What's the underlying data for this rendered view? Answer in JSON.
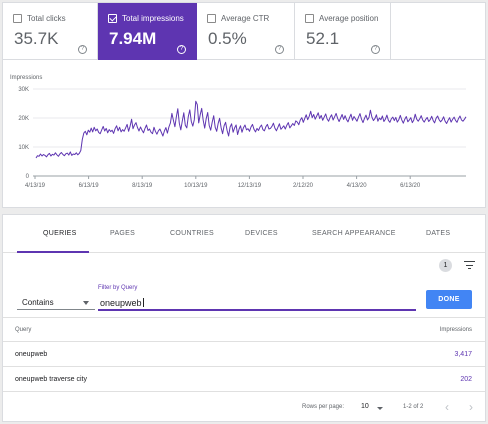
{
  "metrics": [
    {
      "label": "Total clicks",
      "value": "35.7K",
      "checked": false
    },
    {
      "label": "Total impressions",
      "value": "7.94M",
      "checked": true
    },
    {
      "label": "Average CTR",
      "value": "0.5%",
      "checked": false
    },
    {
      "label": "Average position",
      "value": "52.1",
      "checked": false
    }
  ],
  "help_glyph": "?",
  "chart_data": {
    "type": "line",
    "ylabel": "Impressions",
    "y_ticks": [
      "0",
      "10K",
      "20K",
      "30K"
    ],
    "ylim": [
      0,
      30000
    ],
    "x_ticks": [
      "4/13/19",
      "6/13/19",
      "8/13/19",
      "10/13/19",
      "12/13/19",
      "2/12/20",
      "4/13/20",
      "6/13/20"
    ],
    "grid": true,
    "series": [
      {
        "color": "#5e35b1",
        "values": [
          6200,
          7000,
          6800,
          7600,
          6900,
          7400,
          7100,
          6600,
          7300,
          7800,
          6900,
          7500,
          7200,
          8000,
          7300,
          6800,
          7600,
          8100,
          7400,
          7000,
          7700,
          7900,
          7200,
          8300,
          7100,
          7600,
          7400,
          8000,
          7300,
          7800,
          8800,
          12600,
          14800,
          15400,
          14200,
          15800,
          15100,
          16500,
          15200,
          16800,
          15600,
          16200,
          15000,
          14600,
          15900,
          17100,
          15500,
          16400,
          14900,
          16000,
          15300,
          15800,
          14700,
          16300,
          17300,
          15600,
          16800,
          15200,
          16000,
          15400,
          16600,
          17800,
          15400,
          17200,
          19600,
          16300,
          17600,
          18400,
          16700,
          15500,
          16900,
          15800,
          14900,
          16400,
          17600,
          15700,
          16200,
          15100,
          14600,
          16800,
          15400,
          14400,
          15600,
          16200,
          15000,
          13800,
          15500,
          16700,
          14800,
          16900,
          18300,
          21600,
          19200,
          17000,
          20300,
          23200,
          18200,
          15900,
          19000,
          21800,
          17500,
          16600,
          20500,
          22800,
          18800,
          17200,
          19400,
          25800,
          24600,
          18300,
          21100,
          23300,
          19200,
          16500,
          19800,
          21900,
          17400,
          15800,
          18600,
          20800,
          16800,
          15400,
          18200,
          19900,
          16700,
          14600,
          17300,
          18500,
          15700,
          13800,
          16900,
          18000,
          15100,
          16600,
          17600,
          14300,
          16200,
          17300,
          15100,
          16700,
          17600,
          15900,
          16300,
          15400,
          16900,
          17800,
          16100,
          15200,
          16400,
          15700,
          16900,
          17600,
          16000,
          15600,
          17000,
          17800,
          16200,
          16400,
          17100,
          18200,
          16500,
          15600,
          16800,
          18000,
          16100,
          16700,
          17300,
          16200,
          17500,
          18400,
          16600,
          17300,
          18100,
          17400,
          19000,
          18600,
          17700,
          19300,
          20100,
          18500,
          19900,
          21100,
          19400,
          20600,
          22300,
          20100,
          21200,
          19600,
          20700,
          21800,
          19800,
          20900,
          19200,
          20300,
          21400,
          19700,
          18900,
          20200,
          21100,
          19300,
          20400,
          21600,
          19900,
          18800,
          20000,
          21200,
          19500,
          20800,
          19400,
          18700,
          20100,
          21300,
          19200,
          20500,
          19700,
          18900,
          20300,
          21500,
          19600,
          18400,
          19900,
          21000,
          19300,
          20200,
          22700,
          20300,
          19100,
          19800,
          21100,
          18900,
          20000,
          19400,
          20700,
          18800,
          19600,
          21000,
          19200,
          18500,
          19700,
          20300,
          19100,
          20200,
          18600,
          19400,
          20900,
          19300,
          18200,
          19600,
          20500,
          18700,
          19300,
          20100,
          18400,
          19200,
          21300,
          19600,
          18900,
          19700,
          20800,
          19300,
          18600,
          19500,
          20200,
          18800,
          19400,
          20600,
          19100,
          18300,
          19900,
          20700,
          19400,
          18700,
          19300,
          20400,
          18900,
          18100,
          19200,
          20100,
          18600,
          19500,
          20300,
          19200,
          18500,
          19800,
          20700,
          19300,
          18900,
          19600,
          20400
        ]
      }
    ]
  },
  "tabs": [
    "QUERIES",
    "PAGES",
    "COUNTRIES",
    "DEVICES",
    "SEARCH APPEARANCE",
    "DATES"
  ],
  "filter_count": "1",
  "filter": {
    "mode": "Contains",
    "label": "Filter by Query",
    "value": "oneupweb",
    "done_label": "DONE"
  },
  "table": {
    "columns": [
      "Query",
      "Impressions"
    ],
    "rows": [
      {
        "query": "oneupweb",
        "impressions": "3,417"
      },
      {
        "query": "oneupweb traverse city",
        "impressions": "202"
      }
    ]
  },
  "pager": {
    "rows_label": "Rows per page:",
    "rows_value": "10",
    "range": "1-2 of 2",
    "prev": "‹",
    "next": "›"
  }
}
